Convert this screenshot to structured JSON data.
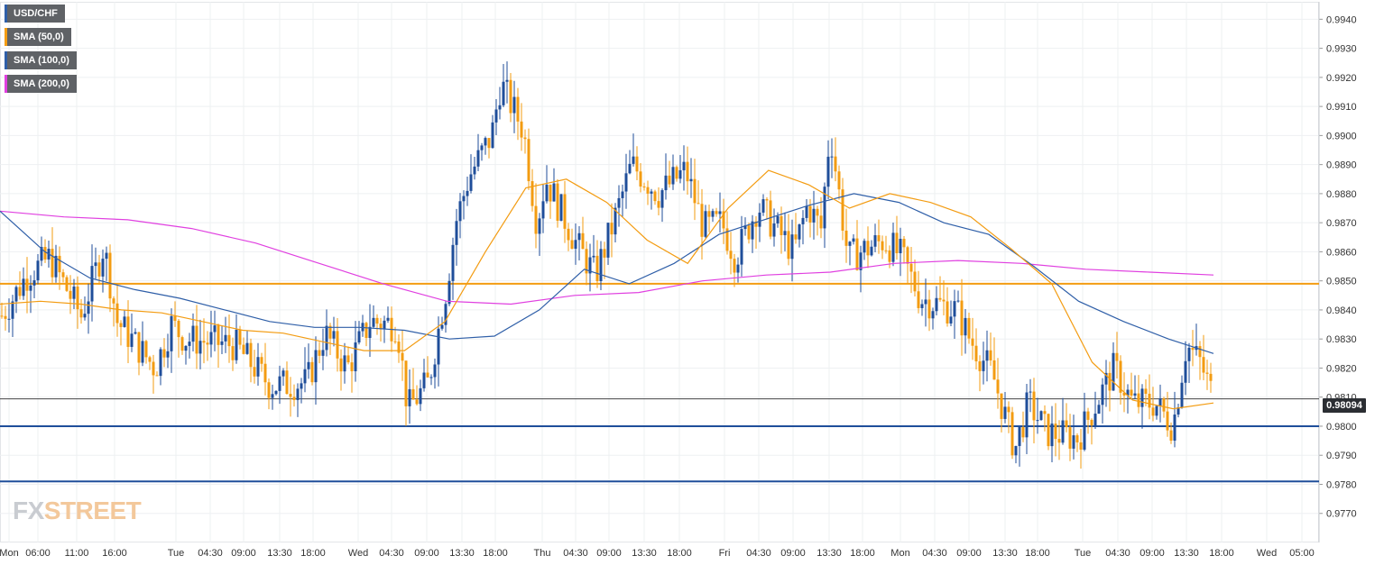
{
  "legend": [
    {
      "label": "USD/CHF",
      "color": "#2f5fa8"
    },
    {
      "label": "SMA (50,0)",
      "color": "#f39c12"
    },
    {
      "label": "SMA (100,0)",
      "color": "#2f5fa8"
    },
    {
      "label": "SMA (200,0)",
      "color": "#e040e0"
    }
  ],
  "current_price_tag": "0.98094",
  "watermark": {
    "fx": "FX",
    "street": "STREET"
  },
  "chart_data": {
    "type": "candlestick",
    "symbol": "USD/CHF",
    "ylim": [
      0.976,
      0.9946
    ],
    "y_ticks": [
      "0.9940",
      "0.9930",
      "0.9920",
      "0.9910",
      "0.9900",
      "0.9890",
      "0.9880",
      "0.9870",
      "0.9860",
      "0.9850",
      "0.9840",
      "0.9830",
      "0.9820",
      "0.9810",
      "0.9800",
      "0.9790",
      "0.9780",
      "0.9770"
    ],
    "x_ticks": [
      "Mon",
      "06:00",
      "11:00",
      "16:00",
      "Tue",
      "04:30",
      "09:00",
      "13:30",
      "18:00",
      "Wed",
      "04:30",
      "09:00",
      "13:30",
      "18:00",
      "Thu",
      "04:30",
      "09:00",
      "13:30",
      "18:00",
      "Fri",
      "04:30",
      "09:00",
      "13:30",
      "18:00",
      "Mon",
      "04:30",
      "09:00",
      "13:30",
      "18:00",
      "Tue",
      "04:30",
      "09:00",
      "13:30",
      "18:00",
      "Wed",
      "05:00"
    ],
    "horizontal_levels": [
      {
        "value": 0.9849,
        "color": "#f39c12"
      },
      {
        "value": 0.98,
        "color": "#1f4e9a"
      },
      {
        "value": 0.9781,
        "color": "#1f4e9a"
      }
    ],
    "last_price": 0.98094,
    "candle_colors": {
      "up": "#1f4e9a",
      "down": "#f39c12"
    },
    "ohlc": [],
    "sma_50": [
      0.9842,
      0.9843,
      0.9842,
      0.984,
      0.9839,
      0.9836,
      0.9833,
      0.9832,
      0.9829,
      0.9826,
      0.9826,
      0.9836,
      0.986,
      0.9882,
      0.9885,
      0.9877,
      0.9864,
      0.9856,
      0.9875,
      0.9888,
      0.9883,
      0.9875,
      0.988,
      0.9877,
      0.9872,
      0.9861,
      0.9849,
      0.9822,
      0.9809,
      0.9806,
      0.9808
    ],
    "sma_100": [
      0.9874,
      0.986,
      0.9851,
      0.9847,
      0.9844,
      0.984,
      0.9836,
      0.9834,
      0.9834,
      0.9833,
      0.983,
      0.9831,
      0.984,
      0.9854,
      0.9849,
      0.9856,
      0.9866,
      0.9871,
      0.9876,
      0.988,
      0.9877,
      0.987,
      0.9866,
      0.9855,
      0.9843,
      0.9836,
      0.983,
      0.9825
    ],
    "sma_200": [
      0.9874,
      0.9872,
      0.9871,
      0.9868,
      0.9863,
      0.9856,
      0.9849,
      0.9843,
      0.9842,
      0.9845,
      0.9846,
      0.985,
      0.9852,
      0.9853,
      0.9856,
      0.9857,
      0.9856,
      0.9854,
      0.9853,
      0.9852
    ]
  }
}
